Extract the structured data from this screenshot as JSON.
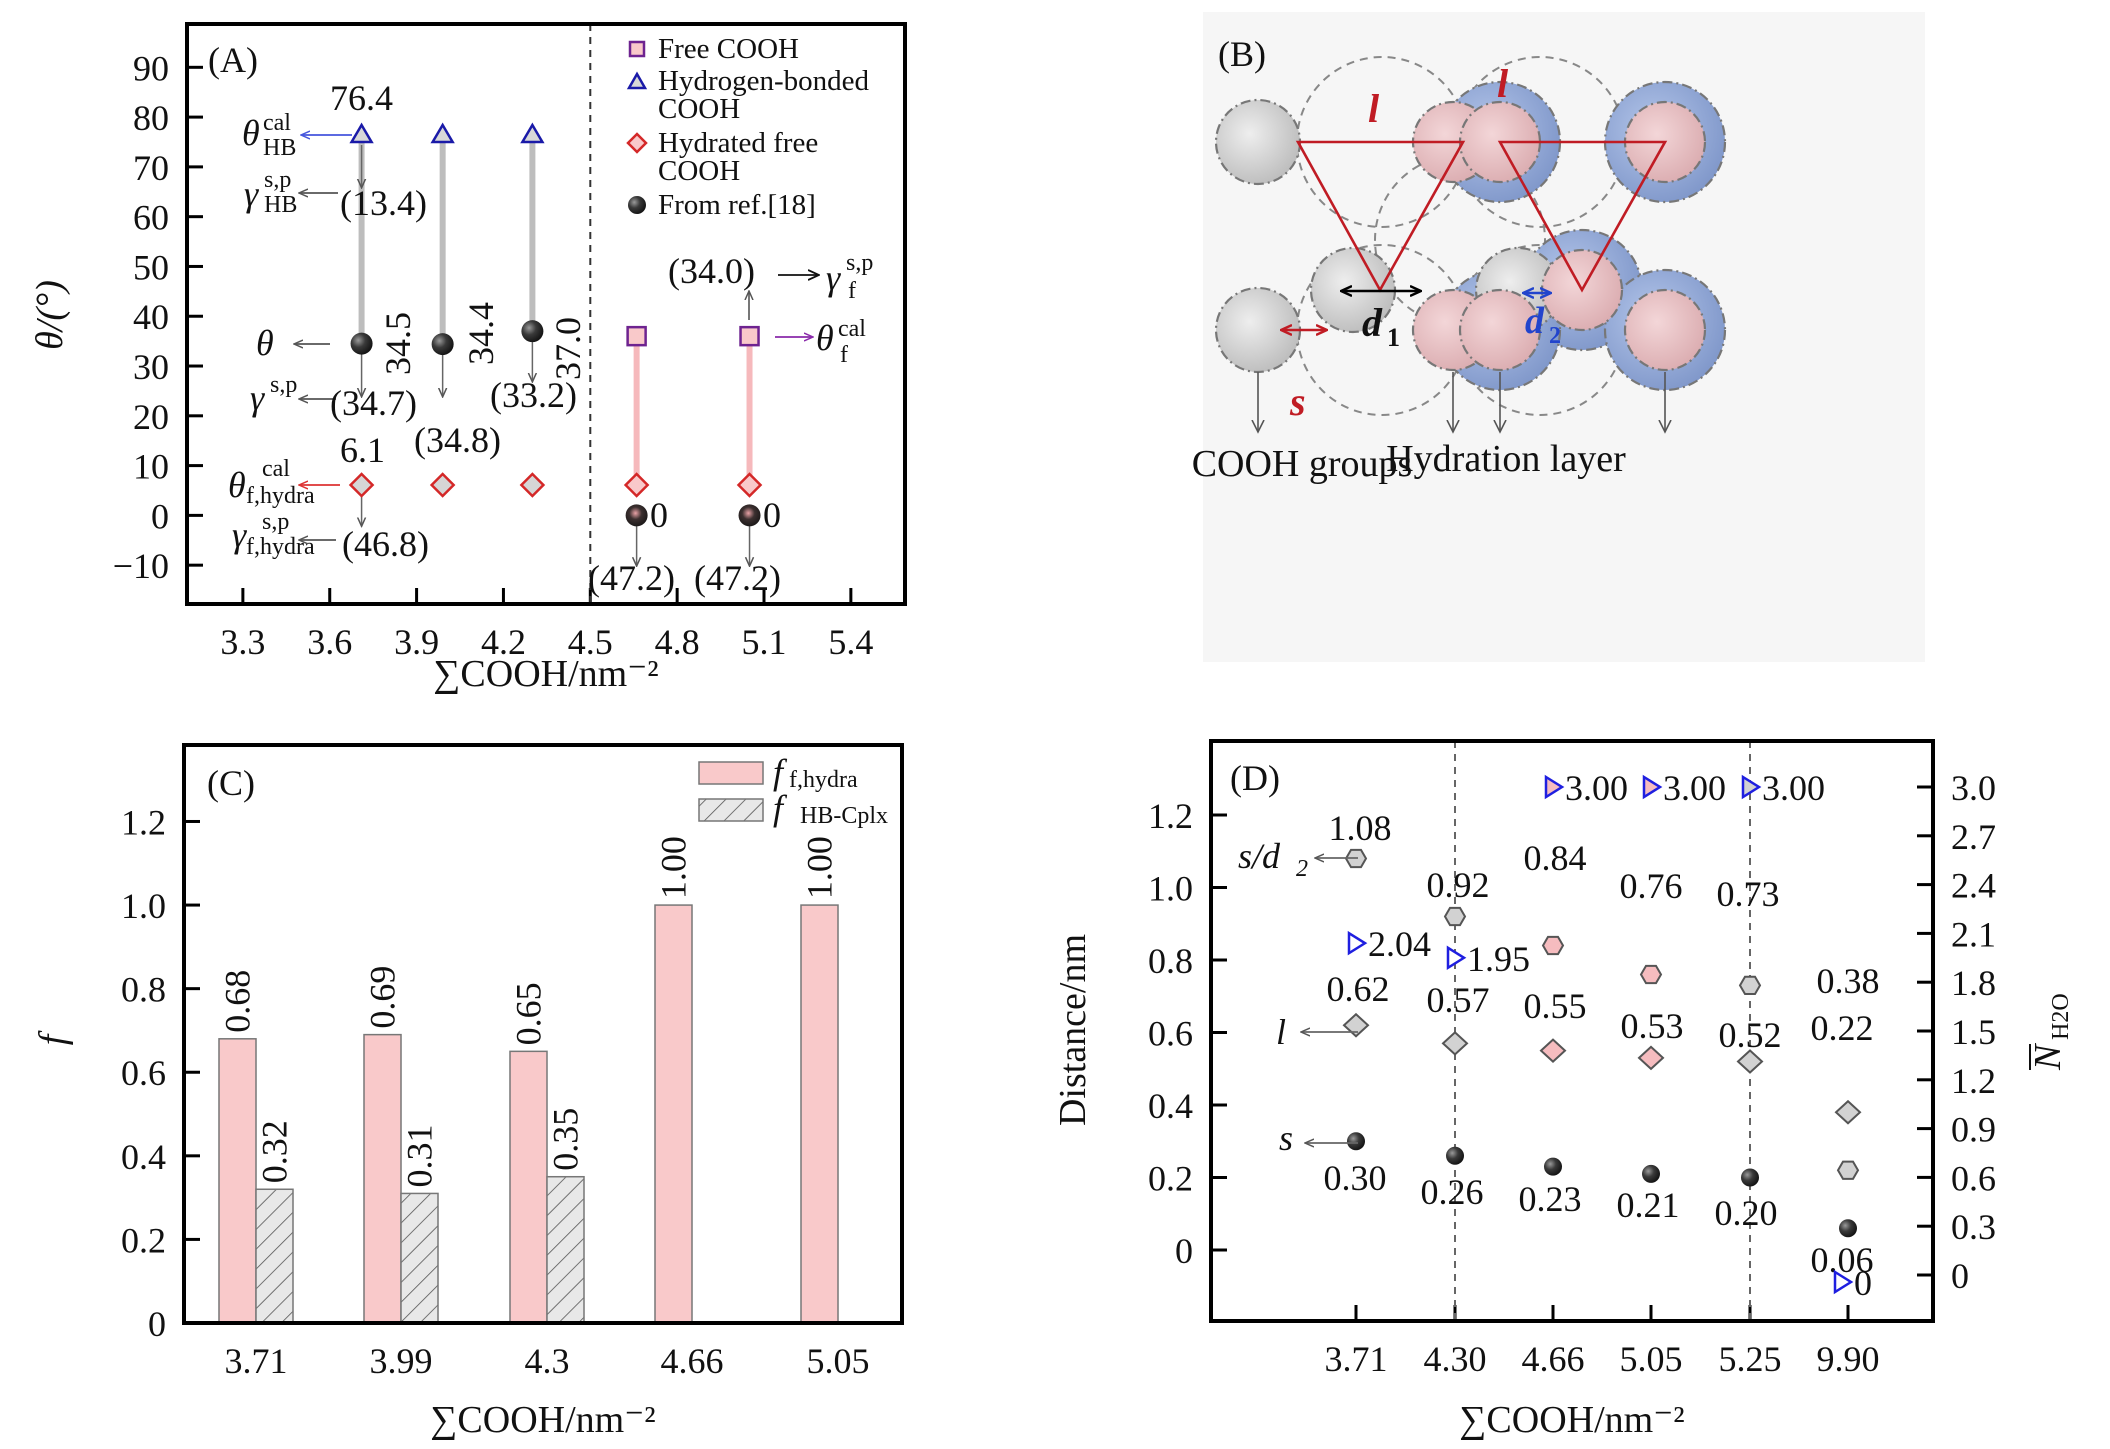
{
  "chart_data": [
    {
      "panel": "A",
      "type": "scatter",
      "panel_label": "(A)",
      "xlabel": "∑COOH/nm⁻²",
      "ylabel": "θ/(°)",
      "xlim": [
        3.107,
        5.587
      ],
      "ylim": [
        -17.8,
        98.7
      ],
      "xticks": [
        3.3,
        3.6,
        3.9,
        4.2,
        4.5,
        4.8,
        5.1,
        5.4
      ],
      "xtick_labels": [
        "3.3",
        "3.6",
        "3.9",
        "4.2",
        "4.5",
        "4.8",
        "5.1",
        "5.4"
      ],
      "yticks": [
        90,
        80,
        70,
        60,
        50,
        40,
        30,
        20,
        10,
        0,
        -10
      ],
      "ytick_labels": [
        "90",
        "80",
        "70",
        "60",
        "50",
        "40",
        "30",
        "20",
        "10",
        "0",
        "−10"
      ],
      "divider_x": 4.5,
      "legend": {
        "placement": "top-right",
        "entries": [
          {
            "label": "Free COOH",
            "marker": "square"
          },
          {
            "label": "Hydrogen-bonded",
            "label2": "COOH",
            "marker": "triangle"
          },
          {
            "label": "Hydrated free",
            "label2": "COOH",
            "marker": "diamond"
          },
          {
            "label": "From ref.[18]",
            "marker": "sphere"
          }
        ]
      },
      "series": [
        {
          "name": "Hydrogen-bonded COOH",
          "marker": "triangle",
          "x": [
            3.71,
            3.99,
            4.3
          ],
          "y": [
            76.4,
            76.4,
            76.4
          ]
        },
        {
          "name": "From ref.[18]",
          "marker": "sphere",
          "x": [
            3.71,
            3.99,
            4.3,
            4.66,
            5.05
          ],
          "y": [
            34.5,
            34.4,
            37.0,
            0,
            0
          ]
        },
        {
          "name": "Hydrated free COOH",
          "marker": "diamond",
          "x": [
            3.71,
            3.99,
            4.3,
            4.66,
            5.05
          ],
          "y": [
            6.1,
            6.1,
            6.1,
            6.1,
            6.1
          ]
        },
        {
          "name": "Free COOH",
          "marker": "square",
          "x": [
            4.66,
            5.05
          ],
          "y": [
            36,
            36
          ]
        }
      ],
      "annotations": {
        "hb_value": "76.4",
        "hb_gamma": "(13.4)",
        "theta_values": [
          "34.5",
          "34.4",
          "37.0"
        ],
        "gamma_values": [
          "(34.7)",
          "(34.8)",
          "(33.2)"
        ],
        "hydra_value": "6.1",
        "hydra_gamma": "(46.8)",
        "zero_labels": [
          "0",
          "0"
        ],
        "free_gamma_lower": [
          "(47.2)",
          "(47.2)"
        ],
        "free_gamma_upper": "(34.0)",
        "sym_theta_hb": "θ",
        "sym_theta_hb_sup": "cal",
        "sym_theta_hb_sub": "HB",
        "sym_gamma_hb": "γ",
        "sym_gamma_hb_sup": "s,p",
        "sym_gamma_hb_sub": "HB",
        "sym_theta": "θ",
        "sym_gamma": "γ",
        "sym_gamma_sup": "s,p",
        "sym_theta_hydra": "θ",
        "sym_theta_hydra_sup": "cal",
        "sym_theta_hydra_sub": "f,hydra",
        "sym_gamma_hydra": "γ",
        "sym_gamma_hydra_sup": "s,p",
        "sym_gamma_hydra_sub": "f,hydra",
        "sym_gamma_f": "γ",
        "sym_gamma_f_sup": "s,p",
        "sym_gamma_f_sub": "f",
        "sym_theta_f": "θ",
        "sym_theta_f_sup": "cal",
        "sym_theta_f_sub": "f"
      }
    },
    {
      "panel": "C",
      "type": "bar",
      "panel_label": "(C)",
      "xlabel": "∑COOH/nm⁻²",
      "ylabel": "f",
      "ylim": [
        0,
        1.383
      ],
      "yticks": [
        1.2,
        1.0,
        0.8,
        0.6,
        0.4,
        0.2,
        0
      ],
      "ytick_labels": [
        "1.2",
        "1.0",
        "0.8",
        "0.6",
        "0.4",
        "0.2",
        "0"
      ],
      "categories": [
        "3.71",
        "3.99",
        "4.3",
        "4.66",
        "5.05"
      ],
      "legend": {
        "placement": "top-right",
        "entries": [
          {
            "symbol": "f",
            "sub": "f,hydra",
            "style": "pink"
          },
          {
            "symbol": "f",
            "sub": "HB-Cplx",
            "style": "hatched"
          }
        ]
      },
      "series": [
        {
          "name": "f_f,hydra",
          "values": [
            0.68,
            0.69,
            0.65,
            1.0,
            1.0
          ],
          "labels": [
            "0.68",
            "0.69",
            "0.65",
            "1.00",
            "1.00"
          ]
        },
        {
          "name": "f_HB-Cplx",
          "values": [
            0.32,
            0.31,
            0.35,
            null,
            null
          ],
          "labels": [
            "0.32",
            "0.31",
            "0.35",
            "",
            ""
          ]
        }
      ]
    },
    {
      "panel": "D",
      "type": "scatter",
      "panel_label": "(D)",
      "xlabel": "∑COOH/nm⁻²",
      "ylabel": "Distance/nm",
      "y2label": "N",
      "y2label_sub": "H2O",
      "categories": [
        "3.71",
        "4.30",
        "4.66",
        "5.05",
        "5.25",
        "9.90"
      ],
      "ylim": [
        -0.197,
        1.414
      ],
      "yticks": [
        1.2,
        1.0,
        0.8,
        0.6,
        0.4,
        0.2,
        0
      ],
      "ytick_labels": [
        "1.2",
        "1.0",
        "0.8",
        "0.6",
        "0.4",
        "0.2",
        "0"
      ],
      "y2ticks": [
        3.0,
        2.7,
        2.4,
        2.1,
        1.8,
        1.5,
        1.2,
        0.9,
        0.6,
        0.3,
        0
      ],
      "y2tick_labels": [
        "3.0",
        "2.7",
        "2.4",
        "2.1",
        "1.8",
        "1.5",
        "1.2",
        "0.9",
        "0.6",
        "0.3",
        "0"
      ],
      "divider_categories": [
        "4.30",
        "5.25"
      ],
      "series": [
        {
          "name": "s/d2",
          "marker": "hexagon",
          "axis": "left",
          "values": [
            1.08,
            0.92,
            0.84,
            0.76,
            0.73,
            0.22
          ],
          "labels": [
            "1.08",
            "0.92",
            "0.84",
            "0.76",
            "0.73",
            "0.22"
          ],
          "colors": [
            "gray",
            "gray",
            "pink",
            "pink",
            "gray",
            "gray"
          ]
        },
        {
          "name": "l",
          "marker": "diamond",
          "axis": "left",
          "values": [
            0.62,
            0.57,
            0.55,
            0.53,
            0.52,
            0.38
          ],
          "labels": [
            "0.62",
            "0.57",
            "0.55",
            "0.53",
            "0.52",
            "0.38"
          ],
          "colors": [
            "gray",
            "gray",
            "pink",
            "pink",
            "gray",
            "gray"
          ]
        },
        {
          "name": "s",
          "marker": "sphere",
          "axis": "left",
          "values": [
            0.3,
            0.26,
            0.23,
            0.21,
            0.2,
            0.06
          ],
          "labels": [
            "0.30",
            "0.26",
            "0.23",
            "0.21",
            "0.20",
            "0.06"
          ]
        },
        {
          "name": "N_H2O",
          "marker": "triangle-right",
          "axis": "right",
          "values": [
            2.04,
            1.95,
            3.0,
            3.0,
            3.0,
            0
          ],
          "labels": [
            "2.04",
            "1.95",
            "3.00",
            "3.00",
            "3.00",
            "0"
          ],
          "colors": [
            "white",
            "white",
            "pink",
            "pink",
            "gray",
            "white"
          ]
        }
      ],
      "series_labels": {
        "s_over_d2": "s/d",
        "s_over_d2_sub": "2",
        "l": "l",
        "s": "s"
      }
    }
  ],
  "diagram_b": {
    "panel_label": "(B)",
    "label_l": "l",
    "label_d1": "d",
    "label_d1_sub": "1",
    "label_d2": "d",
    "label_d2_sub": "2",
    "label_s": "s",
    "caption_left": "COOH groups",
    "caption_right": "Hydration layer"
  },
  "colors": {
    "pink_fill": "#f9c9ca",
    "hb_blue": "#1a1aa8",
    "diamond_red": "#d42828",
    "square_purple": "#6e2390",
    "sphere_dark": "#2a2a2a",
    "gray_fill": "#d4d4d4",
    "hydration_blue": "#8fa8d8",
    "triangle_blue": "#1f1fe0",
    "diagram_red": "#c01c24"
  }
}
